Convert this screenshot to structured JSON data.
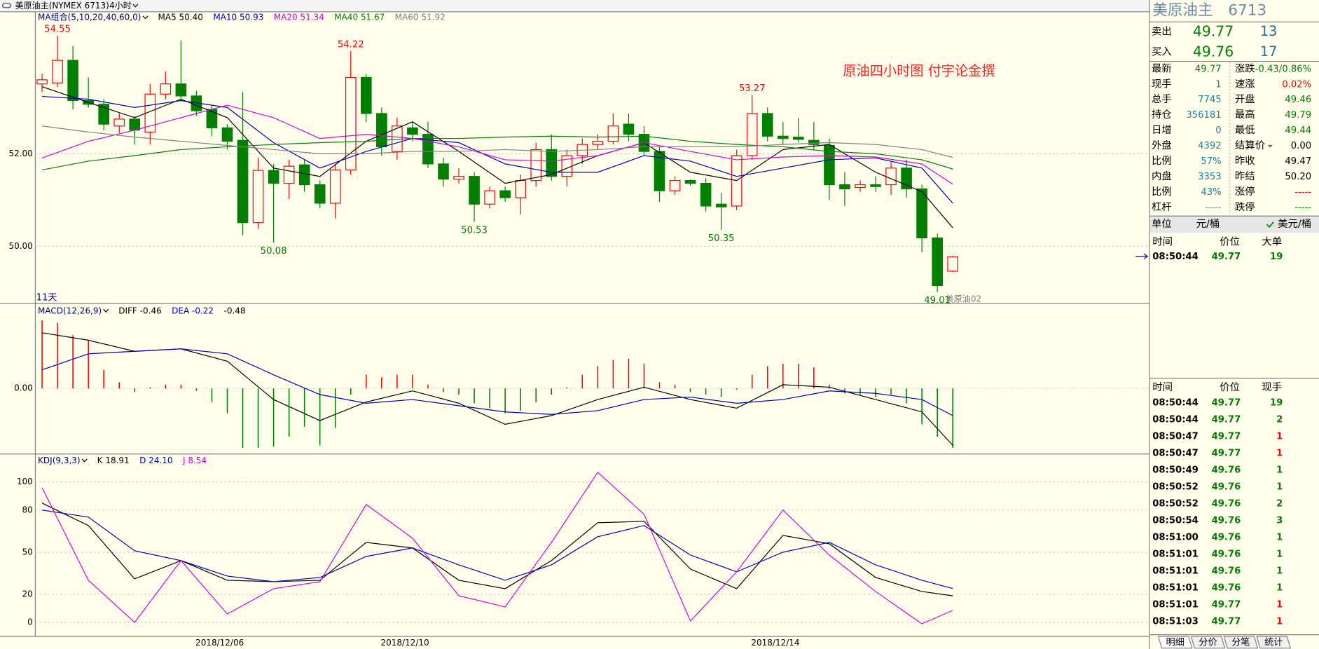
{
  "toolbar": {
    "symbol": "美原油主(NYMEX 6713)",
    "period": "4小时"
  },
  "price_panel": {
    "legend": [
      {
        "text": "MA组合(5,10,20,40,60,0)",
        "color": "#000080"
      },
      {
        "text": "MA5 50.40",
        "color": "#000000"
      },
      {
        "text": "MA10 50.93",
        "color": "#0000c0"
      },
      {
        "text": "MA20 51.34",
        "color": "#e000e0"
      },
      {
        "text": "MA40 51.67",
        "color": "#008000"
      },
      {
        "text": "MA60 51.92",
        "color": "#808080"
      }
    ],
    "annotation": "原油四小时图  付宇论金撰",
    "span_label": "11天",
    "contract_label": "美原油02",
    "ylim": [
      48.78,
      55.07
    ],
    "yticks": [
      {
        "value": 50,
        "label": "50.00"
      },
      {
        "value": 52,
        "label": "52.00"
      }
    ],
    "up_color": "#ff0000",
    "down_color": "#008000",
    "candles": [
      {
        "open": 53.51,
        "high": 53.73,
        "low": 53.33,
        "close": 53.6
      },
      {
        "open": 53.53,
        "high": 54.55,
        "low": 53.44,
        "close": 54.02,
        "flag": "high"
      },
      {
        "open": 54.02,
        "high": 54.33,
        "low": 52.96,
        "close": 53.15
      },
      {
        "open": 53.15,
        "high": 53.65,
        "low": 53.0,
        "close": 53.07
      },
      {
        "open": 53.07,
        "high": 53.18,
        "low": 52.51,
        "close": 52.64
      },
      {
        "open": 52.6,
        "high": 52.87,
        "low": 52.45,
        "close": 52.75
      },
      {
        "open": 52.75,
        "high": 52.82,
        "low": 52.2,
        "close": 52.51
      },
      {
        "open": 52.47,
        "high": 53.51,
        "low": 52.2,
        "close": 53.29
      },
      {
        "open": 53.29,
        "high": 53.78,
        "low": 53.18,
        "close": 53.51
      },
      {
        "open": 53.51,
        "high": 54.45,
        "low": 53.15,
        "close": 53.25
      },
      {
        "open": 53.25,
        "high": 53.36,
        "low": 52.82,
        "close": 52.93
      },
      {
        "open": 52.96,
        "high": 53.05,
        "low": 52.38,
        "close": 52.56
      },
      {
        "open": 52.56,
        "high": 52.64,
        "low": 52.09,
        "close": 52.27
      },
      {
        "open": 52.29,
        "high": 53.33,
        "low": 50.24,
        "close": 50.51
      },
      {
        "open": 50.51,
        "high": 51.91,
        "low": 50.38,
        "close": 51.64
      },
      {
        "open": 51.64,
        "high": 51.78,
        "low": 50.08,
        "close": 51.36,
        "flag": "low"
      },
      {
        "open": 51.36,
        "high": 51.87,
        "low": 51.02,
        "close": 51.73
      },
      {
        "open": 51.76,
        "high": 51.87,
        "low": 51.18,
        "close": 51.33
      },
      {
        "open": 51.33,
        "high": 51.42,
        "low": 50.82,
        "close": 50.93
      },
      {
        "open": 50.93,
        "high": 51.78,
        "low": 50.6,
        "close": 51.65
      },
      {
        "open": 51.65,
        "high": 54.22,
        "low": 51.55,
        "close": 53.65,
        "flag": "high"
      },
      {
        "open": 53.65,
        "high": 53.73,
        "low": 52.69,
        "close": 52.87
      },
      {
        "open": 52.87,
        "high": 53.0,
        "low": 51.96,
        "close": 52.15
      },
      {
        "open": 52.05,
        "high": 52.78,
        "low": 51.87,
        "close": 52.6
      },
      {
        "open": 52.56,
        "high": 52.69,
        "low": 52.27,
        "close": 52.42
      },
      {
        "open": 52.42,
        "high": 52.69,
        "low": 51.69,
        "close": 51.78
      },
      {
        "open": 51.78,
        "high": 51.91,
        "low": 51.29,
        "close": 51.45
      },
      {
        "open": 51.45,
        "high": 51.69,
        "low": 51.36,
        "close": 51.51
      },
      {
        "open": 51.51,
        "high": 51.6,
        "low": 50.53,
        "close": 50.91,
        "flag": "low"
      },
      {
        "open": 50.91,
        "high": 51.29,
        "low": 50.82,
        "close": 51.2
      },
      {
        "open": 51.2,
        "high": 51.29,
        "low": 50.96,
        "close": 51.05
      },
      {
        "open": 51.05,
        "high": 51.55,
        "low": 50.69,
        "close": 51.42
      },
      {
        "open": 51.42,
        "high": 52.24,
        "low": 51.29,
        "close": 52.09
      },
      {
        "open": 52.09,
        "high": 52.42,
        "low": 51.42,
        "close": 51.51
      },
      {
        "open": 51.51,
        "high": 52.09,
        "low": 51.29,
        "close": 51.96
      },
      {
        "open": 51.96,
        "high": 52.33,
        "low": 51.78,
        "close": 52.2
      },
      {
        "open": 52.2,
        "high": 52.42,
        "low": 52.09,
        "close": 52.27
      },
      {
        "open": 52.27,
        "high": 52.87,
        "low": 52.2,
        "close": 52.6
      },
      {
        "open": 52.64,
        "high": 52.87,
        "low": 52.27,
        "close": 52.42
      },
      {
        "open": 52.42,
        "high": 52.6,
        "low": 51.96,
        "close": 52.05
      },
      {
        "open": 52.05,
        "high": 52.15,
        "low": 50.96,
        "close": 51.2
      },
      {
        "open": 51.2,
        "high": 51.51,
        "low": 51.11,
        "close": 51.42
      },
      {
        "open": 51.42,
        "high": 51.45,
        "low": 51.31,
        "close": 51.36
      },
      {
        "open": 51.36,
        "high": 51.47,
        "low": 50.75,
        "close": 50.87
      },
      {
        "open": 50.91,
        "high": 51.15,
        "low": 50.35,
        "close": 50.85,
        "flag": "low"
      },
      {
        "open": 50.87,
        "high": 52.09,
        "low": 50.78,
        "close": 51.96
      },
      {
        "open": 51.96,
        "high": 53.27,
        "low": 51.87,
        "close": 52.87,
        "flag": "high"
      },
      {
        "open": 52.87,
        "high": 53.0,
        "low": 52.27,
        "close": 52.38
      },
      {
        "open": 52.38,
        "high": 52.69,
        "low": 52.2,
        "close": 52.33
      },
      {
        "open": 52.36,
        "high": 52.78,
        "low": 52.24,
        "close": 52.31
      },
      {
        "open": 52.29,
        "high": 52.69,
        "low": 52.09,
        "close": 52.2
      },
      {
        "open": 52.18,
        "high": 52.33,
        "low": 51.0,
        "close": 51.33
      },
      {
        "open": 51.33,
        "high": 51.6,
        "low": 50.87,
        "close": 51.24
      },
      {
        "open": 51.27,
        "high": 51.42,
        "low": 51.18,
        "close": 51.33
      },
      {
        "open": 51.33,
        "high": 51.51,
        "low": 51.18,
        "close": 51.29
      },
      {
        "open": 51.33,
        "high": 51.84,
        "low": 51.11,
        "close": 51.69
      },
      {
        "open": 51.69,
        "high": 51.87,
        "low": 51.05,
        "close": 51.24
      },
      {
        "open": 51.24,
        "high": 51.33,
        "low": 49.87,
        "close": 50.18
      },
      {
        "open": 50.18,
        "high": 50.27,
        "low": 49.01,
        "close": 49.15,
        "flag": "low"
      },
      {
        "open": 49.46,
        "high": 49.79,
        "low": 49.44,
        "close": 49.77
      }
    ],
    "line_x": [
      0,
      3,
      6,
      9,
      12,
      15,
      18,
      21,
      24,
      27,
      30,
      33,
      36,
      39,
      42,
      45,
      48,
      51,
      54,
      57,
      59
    ],
    "lines": [
      {
        "color": "#000000",
        "values": [
          53.45,
          53.11,
          52.78,
          53.18,
          52.78,
          51.69,
          51.51,
          52.27,
          52.69,
          52.05,
          51.36,
          51.55,
          51.96,
          52.24,
          51.6,
          51.42,
          52.09,
          52.2,
          51.6,
          51.18,
          50.4
        ]
      },
      {
        "color": "#0000c0",
        "values": [
          53.24,
          53.18,
          53.0,
          53.15,
          53.0,
          52.24,
          51.69,
          52.05,
          52.33,
          52.24,
          51.78,
          51.6,
          51.6,
          51.96,
          51.84,
          51.51,
          51.69,
          51.87,
          51.91,
          51.69,
          50.93
        ]
      },
      {
        "color": "#e000e0",
        "values": [
          51.91,
          52.27,
          52.51,
          52.78,
          53.05,
          52.78,
          52.33,
          52.42,
          52.33,
          52.15,
          51.87,
          51.84,
          51.96,
          52.24,
          52.05,
          51.87,
          51.93,
          51.96,
          51.93,
          51.78,
          51.34
        ]
      },
      {
        "color": "#008000",
        "values": [
          51.65,
          51.84,
          51.96,
          52.09,
          52.15,
          52.2,
          52.24,
          52.27,
          52.33,
          52.33,
          52.36,
          52.38,
          52.36,
          52.38,
          52.27,
          52.2,
          52.15,
          52.05,
          52.0,
          51.87,
          51.67
        ]
      },
      {
        "color": "#808080",
        "values": [
          52.6,
          52.47,
          52.36,
          52.27,
          52.18,
          52.09,
          52.0,
          52.0,
          52.05,
          52.05,
          52.09,
          52.05,
          52.09,
          52.15,
          52.15,
          52.15,
          52.2,
          52.24,
          52.2,
          52.09,
          51.92
        ]
      }
    ]
  },
  "macd_panel": {
    "legend": [
      {
        "text": "MACD(12,26,9)",
        "color": "#000080"
      },
      {
        "text": "DIFF -0.46",
        "color": "#000000"
      },
      {
        "text": "DEA -0.22",
        "color": "#0000c0"
      },
      {
        "text": "-0.48",
        "color": "#000000"
      }
    ],
    "ylim": [
      -0.53,
      0.68
    ],
    "yticks": [
      {
        "value": 0,
        "label": "0.00"
      }
    ],
    "up_color": "#ff0000",
    "down_color": "#008000",
    "hist": [
      0.55,
      0.53,
      0.43,
      0.39,
      0.15,
      0.05,
      -0.03,
      0.01,
      0.03,
      0.03,
      -0.02,
      -0.11,
      -0.2,
      -0.48,
      -0.48,
      -0.47,
      -0.39,
      -0.31,
      -0.46,
      -0.32,
      -0.05,
      0.11,
      0.09,
      0.11,
      0.11,
      0.03,
      -0.03,
      -0.05,
      -0.12,
      -0.16,
      -0.2,
      -0.18,
      -0.11,
      -0.05,
      0.01,
      0.11,
      0.18,
      0.23,
      0.24,
      0.2,
      0.05,
      0.03,
      -0.03,
      -0.05,
      -0.07,
      -0.01,
      0.11,
      0.18,
      0.2,
      0.2,
      0.17,
      0.03,
      -0.04,
      -0.05,
      -0.07,
      -0.05,
      -0.12,
      -0.29,
      -0.39,
      -0.48
    ],
    "line_x": [
      0,
      3,
      6,
      9,
      12,
      15,
      18,
      21,
      24,
      27,
      30,
      33,
      36,
      39,
      42,
      45,
      48,
      51,
      54,
      57,
      59
    ],
    "lines": [
      {
        "color": "#000000",
        "values": [
          0.45,
          0.39,
          0.3,
          0.32,
          0.22,
          -0.09,
          -0.26,
          -0.11,
          -0.02,
          -0.12,
          -0.29,
          -0.22,
          -0.09,
          0.01,
          -0.09,
          -0.16,
          0.03,
          0.01,
          -0.09,
          -0.19,
          -0.46
        ]
      },
      {
        "color": "#0000c0",
        "values": [
          0.15,
          0.28,
          0.3,
          0.32,
          0.28,
          0.11,
          -0.05,
          -0.12,
          -0.09,
          -0.14,
          -0.19,
          -0.21,
          -0.18,
          -0.09,
          -0.07,
          -0.12,
          -0.09,
          -0.02,
          -0.04,
          -0.09,
          -0.22
        ]
      }
    ]
  },
  "kdj_panel": {
    "legend": [
      {
        "text": "KDJ(9,3,3)",
        "color": "#000080"
      },
      {
        "text": "K 18.91",
        "color": "#000000"
      },
      {
        "text": "D 24.10",
        "color": "#0000c0"
      },
      {
        "text": "J 8.54",
        "color": "#e000e0"
      }
    ],
    "ylim": [
      -10,
      120
    ],
    "yticks": [
      0,
      20,
      50,
      80,
      100
    ],
    "line_x": [
      0,
      3,
      6,
      9,
      12,
      15,
      18,
      21,
      24,
      27,
      30,
      33,
      36,
      39,
      42,
      45,
      48,
      51,
      54,
      57,
      59
    ],
    "lines": [
      {
        "color": "#000000",
        "values": [
          85,
          69,
          31,
          44,
          30,
          29,
          30,
          57,
          53,
          30,
          24,
          44,
          71,
          72,
          38,
          24,
          62,
          56,
          32,
          22,
          18.91
        ]
      },
      {
        "color": "#0000c0",
        "values": [
          80,
          75,
          51,
          44,
          33,
          29,
          32,
          47,
          53,
          41,
          30,
          41,
          61,
          69,
          48,
          36,
          50,
          57,
          41,
          30,
          24.1
        ]
      },
      {
        "color": "#e000e0",
        "values": [
          96,
          30,
          0,
          44,
          6,
          24,
          29,
          84,
          60,
          19,
          11,
          57,
          107,
          77,
          1,
          36,
          80,
          48,
          22,
          -1,
          8.54
        ]
      }
    ]
  },
  "time_axis": {
    "labels": [
      null,
      null,
      null,
      null,
      null,
      null,
      null,
      null,
      null,
      null,
      null,
      null,
      "2018/12/06",
      null,
      null,
      null,
      null,
      null,
      null,
      null,
      null,
      null,
      null,
      null,
      "2018/12/10",
      null,
      null,
      null,
      null,
      null,
      null,
      null,
      null,
      null,
      null,
      null,
      null,
      null,
      null,
      null,
      null,
      null,
      null,
      null,
      null,
      null,
      null,
      null,
      "2018/12/14",
      null,
      null,
      null,
      null,
      null,
      null,
      null,
      null,
      null,
      null,
      null
    ]
  },
  "quote": {
    "title": "美原油主",
    "code": "6713",
    "sell": {
      "label": "卖出",
      "price": "49.77",
      "volume": "13"
    },
    "buy": {
      "label": "买入",
      "price": "49.76",
      "volume": "17"
    },
    "stats": [
      [
        {
          "label": "最新",
          "value": "49.77",
          "color": "#008000"
        },
        {
          "label": "涨跌",
          "value": "-0.43/0.86%",
          "color": "#008000"
        }
      ],
      [
        {
          "label": "现手",
          "value": "1",
          "color": "#2080a0"
        },
        {
          "label": "速涨",
          "value": "0.02%",
          "color": "#ff0000"
        }
      ],
      [
        {
          "label": "总手",
          "value": "7745",
          "color": "#2080a0"
        },
        {
          "label": "开盘",
          "value": "49.46",
          "color": "#008000"
        }
      ],
      [
        {
          "label": "持仓",
          "value": "356181",
          "color": "#2080a0"
        },
        {
          "label": "最高",
          "value": "49.79",
          "color": "#008000"
        }
      ],
      [
        {
          "label": "日增",
          "value": "0",
          "color": "#2080a0"
        },
        {
          "label": "最低",
          "value": "49.44",
          "color": "#008000"
        }
      ],
      [
        {
          "label": "外盘",
          "value": "4392",
          "color": "#2080a0"
        },
        {
          "label": "结算价",
          "value": "0.00",
          "color": "#000000"
        }
      ],
      [
        {
          "label": "比例",
          "value": "57%",
          "color": "#2080a0"
        },
        {
          "label": "昨收",
          "value": "49.47",
          "color": "#000000"
        }
      ],
      [
        {
          "label": "内盘",
          "value": "3353",
          "color": "#2080a0"
        },
        {
          "label": "昨结",
          "value": "50.20",
          "color": "#000000"
        }
      ],
      [
        {
          "label": "比例",
          "value": "43%",
          "color": "#2080a0"
        },
        {
          "label": "涨停",
          "value": "-----",
          "color": "#ff0000"
        }
      ],
      [
        {
          "label": "杠杆",
          "value": "-----",
          "color": "#808080"
        },
        {
          "label": "跌停",
          "value": "-----",
          "color": "#008000"
        }
      ]
    ],
    "unit": {
      "label": "单位",
      "cny": "元/桶",
      "usd": "美元/桶"
    },
    "big_orders": {
      "headers": [
        "时间",
        "价位",
        "大单"
      ],
      "rows": [
        {
          "time": "08:50:44",
          "price": "49.77",
          "volume": "19",
          "color": "#008000"
        }
      ]
    },
    "ticks": {
      "headers": [
        "时间",
        "价位",
        "现手"
      ],
      "rows": [
        {
          "time": "08:50:44",
          "price": "49.77",
          "volume": "19",
          "color": "#008000"
        },
        {
          "time": "08:50:44",
          "price": "49.77",
          "volume": "2",
          "color": "#008000"
        },
        {
          "time": "08:50:47",
          "price": "49.77",
          "volume": "1",
          "color": "#ff0000"
        },
        {
          "time": "08:50:47",
          "price": "49.77",
          "volume": "1",
          "color": "#ff0000"
        },
        {
          "time": "08:50:49",
          "price": "49.76",
          "volume": "1",
          "color": "#008000"
        },
        {
          "time": "08:50:52",
          "price": "49.76",
          "volume": "1",
          "color": "#008000"
        },
        {
          "time": "08:50:52",
          "price": "49.76",
          "volume": "2",
          "color": "#008000"
        },
        {
          "time": "08:50:54",
          "price": "49.76",
          "volume": "3",
          "color": "#008000"
        },
        {
          "time": "08:51:00",
          "price": "49.76",
          "volume": "1",
          "color": "#008000"
        },
        {
          "time": "08:51:01",
          "price": "49.76",
          "volume": "1",
          "color": "#008000"
        },
        {
          "time": "08:51:01",
          "price": "49.76",
          "volume": "1",
          "color": "#008000"
        },
        {
          "time": "08:51:01",
          "price": "49.76",
          "volume": "1",
          "color": "#008000"
        },
        {
          "time": "08:51:01",
          "price": "49.77",
          "volume": "1",
          "color": "#ff0000"
        },
        {
          "time": "08:51:03",
          "price": "49.77",
          "volume": "1",
          "color": "#ff0000"
        }
      ]
    },
    "tabs": [
      "明细",
      "分价",
      "分笔",
      "统计"
    ]
  }
}
